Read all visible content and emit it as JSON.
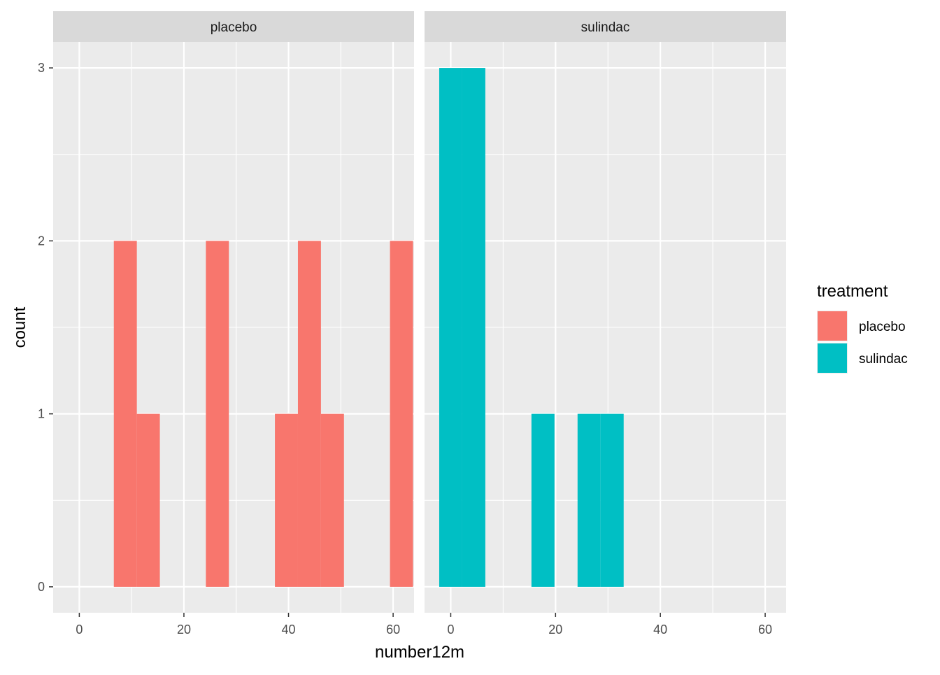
{
  "chart_data": {
    "type": "bar",
    "subtype": "faceted-histogram",
    "xlabel": "number12m",
    "ylabel": "count",
    "xlim": [
      -5,
      64
    ],
    "ylim": [
      -0.15,
      3.15
    ],
    "x_ticks": [
      0,
      20,
      40,
      60
    ],
    "y_ticks": [
      0,
      1,
      2,
      3
    ],
    "grid": true,
    "bin_width": 4.4,
    "panels": [
      {
        "id": "placebo",
        "label": "placebo",
        "bins": [
          {
            "x0": 6.6,
            "x1": 11.0,
            "count": 2
          },
          {
            "x0": 11.0,
            "x1": 15.4,
            "count": 1
          },
          {
            "x0": 24.2,
            "x1": 28.6,
            "count": 2
          },
          {
            "x0": 37.4,
            "x1": 41.8,
            "count": 1
          },
          {
            "x0": 41.8,
            "x1": 46.2,
            "count": 2
          },
          {
            "x0": 46.2,
            "x1": 50.6,
            "count": 1
          },
          {
            "x0": 59.4,
            "x1": 63.8,
            "count": 2
          }
        ]
      },
      {
        "id": "sulindac",
        "label": "sulindac",
        "bins": [
          {
            "x0": -2.2,
            "x1": 2.2,
            "count": 3
          },
          {
            "x0": 2.2,
            "x1": 6.6,
            "count": 3
          },
          {
            "x0": 15.4,
            "x1": 19.8,
            "count": 1
          },
          {
            "x0": 24.2,
            "x1": 28.6,
            "count": 1
          },
          {
            "x0": 28.6,
            "x1": 33.0,
            "count": 1
          }
        ]
      }
    ],
    "legend": {
      "title": "treatment",
      "placement": "right",
      "items": [
        {
          "label": "placebo",
          "color": "#F8766D"
        },
        {
          "label": "sulindac",
          "color": "#00BFC4"
        }
      ]
    }
  },
  "colors": {
    "panel_background": "#EBEBEB",
    "strip_background": "#D9D9D9",
    "grid": "#FFFFFF",
    "placebo": "#F8766D",
    "sulindac": "#00BFC4"
  }
}
